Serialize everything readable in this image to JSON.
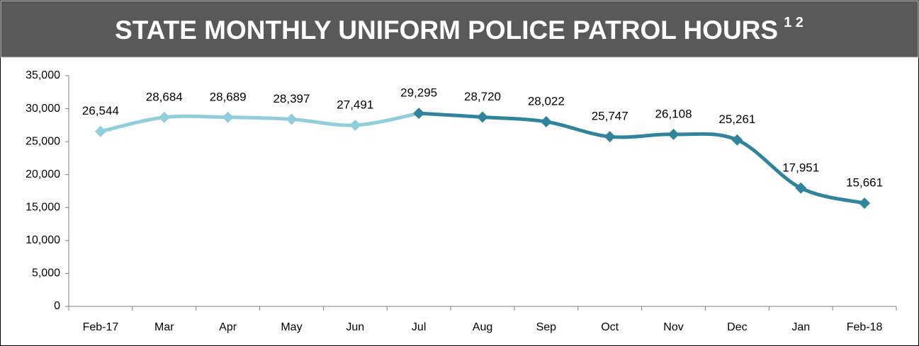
{
  "chart_data": {
    "type": "line",
    "title": "STATE MONTHLY UNIFORM POLICE PATROL HOURS",
    "title_notes": "1 2",
    "categories": [
      "Feb-17",
      "Mar",
      "Apr",
      "May",
      "Jun",
      "Jul",
      "Aug",
      "Sep",
      "Oct",
      "Nov",
      "Dec",
      "Jan",
      "Feb-18"
    ],
    "series": [
      {
        "color": "#92cddc",
        "values": [
          26544,
          28684,
          28689,
          28397,
          27491,
          29295,
          null,
          null,
          null,
          null,
          null,
          null,
          null
        ],
        "value_labels": [
          "26,544",
          "28,684",
          "28,689",
          "28,397",
          "27,491",
          null,
          null,
          null,
          null,
          null,
          null,
          null,
          null
        ]
      },
      {
        "color": "#31849b",
        "values": [
          null,
          null,
          null,
          null,
          null,
          29295,
          28720,
          28022,
          25747,
          26108,
          25261,
          17951,
          15661
        ],
        "value_labels": [
          null,
          null,
          null,
          null,
          null,
          "29,295",
          "28,720",
          "28,022",
          "25,747",
          "26,108",
          "25,261",
          "17,951",
          "15,661"
        ]
      }
    ],
    "ylim": [
      0,
      35000
    ],
    "yticks": [
      0,
      {
        "value": 5000,
        "label": "5,000"
      },
      {
        "value": 10000,
        "label": "10,000"
      },
      {
        "value": 15000,
        "label": "15,000"
      },
      {
        "value": 20000,
        "label": "20,000"
      },
      {
        "value": 25000,
        "label": "25,000"
      },
      {
        "value": 30000,
        "label": "30,000"
      },
      {
        "value": 35000,
        "label": "35,000"
      }
    ],
    "grid": false,
    "smooth": true
  }
}
